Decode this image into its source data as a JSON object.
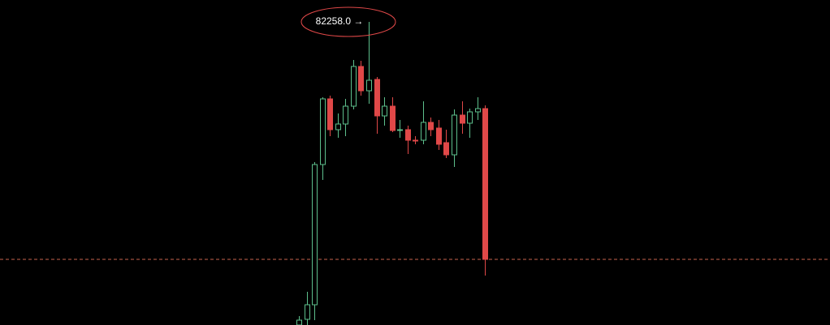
{
  "chart_data": {
    "type": "candlestick",
    "categories": [
      null,
      null,
      null,
      null,
      null,
      null,
      null,
      null,
      null,
      null,
      null,
      null,
      null,
      null,
      null,
      null,
      null,
      null,
      null,
      null,
      null,
      null,
      null,
      null,
      null
    ],
    "open": [
      78518,
      78588,
      78768,
      80498,
      81308,
      80928,
      80998,
      81218,
      81708,
      81408,
      81548,
      81098,
      81218,
      80918,
      80928,
      80798,
      80798,
      81018,
      80948,
      80768,
      80618,
      81108,
      81008,
      81148,
      81188
    ],
    "high": [
      78628,
      78928,
      80528,
      81328,
      81348,
      81128,
      81308,
      81788,
      81778,
      82258,
      81578,
      81328,
      81328,
      81048,
      80978,
      80848,
      81278,
      81078,
      81048,
      80928,
      81178,
      81278,
      81188,
      81328,
      81228
    ],
    "low": [
      78518,
      78518,
      78578,
      80308,
      80848,
      80828,
      80848,
      81178,
      81348,
      81248,
      80878,
      80978,
      80898,
      80828,
      80628,
      80748,
      80748,
      80848,
      80678,
      80578,
      80468,
      80878,
      80828,
      81048,
      79128
    ],
    "close": [
      78578,
      78768,
      80498,
      81308,
      80928,
      80998,
      81218,
      81708,
      81408,
      81538,
      81098,
      81218,
      80918,
      80928,
      80798,
      80788,
      81018,
      80928,
      80748,
      80618,
      81108,
      81008,
      81148,
      81188,
      79328
    ],
    "up_color": "#5dbf8c",
    "down_color": "#e04848",
    "ylim": [
      78518,
      82528
    ],
    "price_line": 79328,
    "price_line_color": "#c8654e",
    "annotation": {
      "label": "82258.0 →",
      "value": 82258
    }
  }
}
